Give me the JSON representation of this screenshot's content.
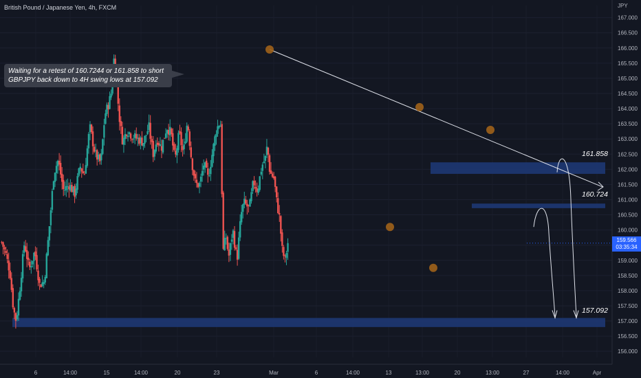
{
  "header": {
    "title": "British Pound / Japanese Yen, 4h, FXCM",
    "currency": "JPY"
  },
  "annotation": {
    "text": "Waiting for a retest of 160.7244 or 161.858 to short GBPJPY back down to 4H swing lows at 157.092"
  },
  "levels": {
    "upper": "161.858",
    "middle": "160.724",
    "target": "157.092"
  },
  "last_price": {
    "value": "159.566",
    "countdown": "03:35:34"
  },
  "colors": {
    "background": "#131722",
    "up": "#26a69a",
    "down": "#ef5350",
    "zone": "#1e3a78",
    "marker": "#a0621a",
    "last_price": "#2962ff"
  },
  "chart_data": {
    "type": "candlestick",
    "title": "British Pound / Japanese Yen, 4h, FXCM",
    "ylim": [
      155.8,
      167.4
    ],
    "yticks": [
      156.0,
      156.5,
      157.0,
      157.5,
      158.0,
      158.5,
      159.0,
      159.5,
      160.0,
      160.5,
      161.0,
      161.5,
      162.0,
      162.5,
      163.0,
      163.5,
      164.0,
      164.5,
      165.0,
      165.5,
      166.0,
      166.5,
      167.0
    ],
    "xticks": [
      "6",
      "14:00",
      "15",
      "14:00",
      "20",
      "23",
      "Mar",
      "6",
      "14:00",
      "13",
      "13:00",
      "20",
      "13:00",
      "27",
      "14:00",
      "Apr"
    ],
    "candle_count": 205,
    "waypoints": [
      [
        0,
        159.6
      ],
      [
        6,
        159.2
      ],
      [
        12,
        158.6
      ],
      [
        17,
        157.4
      ],
      [
        21,
        157.0
      ],
      [
        26,
        158.0
      ],
      [
        33,
        159.6
      ],
      [
        40,
        158.7
      ],
      [
        48,
        159.3
      ],
      [
        55,
        158.2
      ],
      [
        62,
        158.3
      ],
      [
        70,
        160.3
      ],
      [
        76,
        161.9
      ],
      [
        82,
        162.3
      ],
      [
        90,
        161.3
      ],
      [
        98,
        161.5
      ],
      [
        106,
        161.2
      ],
      [
        114,
        162.1
      ],
      [
        120,
        161.8
      ],
      [
        128,
        163.4
      ],
      [
        136,
        162.5
      ],
      [
        144,
        162.2
      ],
      [
        150,
        163.8
      ],
      [
        156,
        164.2
      ],
      [
        160,
        164.6
      ],
      [
        164,
        165.9
      ],
      [
        168,
        164.5
      ],
      [
        172,
        163.5
      ],
      [
        176,
        162.9
      ],
      [
        182,
        163.3
      ],
      [
        190,
        163.1
      ],
      [
        198,
        163.0
      ],
      [
        206,
        162.9
      ],
      [
        214,
        163.4
      ],
      [
        220,
        162.5
      ],
      [
        226,
        163.0
      ],
      [
        232,
        162.7
      ],
      [
        240,
        163.4
      ],
      [
        246,
        163.2
      ],
      [
        252,
        162.3
      ],
      [
        258,
        163.2
      ],
      [
        264,
        162.5
      ],
      [
        270,
        163.6
      ],
      [
        276,
        162.3
      ],
      [
        282,
        161.5
      ],
      [
        288,
        161.5
      ],
      [
        294,
        162.2
      ],
      [
        300,
        161.7
      ],
      [
        306,
        162.5
      ],
      [
        312,
        163.3
      ],
      [
        318,
        163.6
      ],
      [
        322,
        159.3
      ],
      [
        326,
        159.8
      ],
      [
        330,
        159.1
      ],
      [
        336,
        160.0
      ],
      [
        342,
        159.0
      ],
      [
        348,
        160.5
      ],
      [
        352,
        160.9
      ],
      [
        360,
        160.7
      ],
      [
        366,
        161.6
      ],
      [
        372,
        161.3
      ],
      [
        378,
        162.1
      ],
      [
        384,
        162.4
      ],
      [
        386,
        162.8
      ],
      [
        390,
        161.9
      ],
      [
        396,
        161.7
      ],
      [
        400,
        160.9
      ],
      [
        404,
        160.4
      ],
      [
        408,
        159.3
      ],
      [
        412,
        159.0
      ],
      [
        416,
        159.6
      ]
    ],
    "series": [
      {
        "name": "Trendline",
        "points": [
          [
            "Feb 28 04:00",
            165.95
          ],
          [
            "Mar 31 12:00",
            161.42
          ]
        ]
      }
    ],
    "zones": [
      {
        "label": "161.858",
        "low": 161.85,
        "high": 162.23
      },
      {
        "label": "160.724",
        "low": 160.72,
        "high": 160.87
      },
      {
        "label": "157.092",
        "low": 156.8,
        "high": 157.1
      }
    ],
    "swing_points": [
      165.95,
      164.05,
      163.3,
      160.1,
      158.75
    ],
    "projections": [
      {
        "from": 162.0,
        "to": 157.1
      },
      {
        "from": 160.8,
        "to": 157.1
      }
    ]
  }
}
